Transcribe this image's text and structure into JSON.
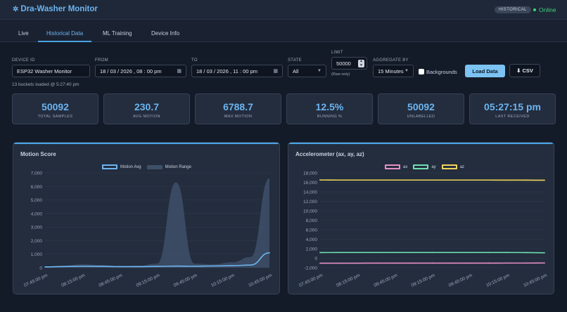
{
  "app": {
    "title": "Dra-Washer Monitor",
    "mode_badge": "HISTORICAL",
    "status": "Online",
    "status_color": "#3fd079"
  },
  "tabs": [
    {
      "label": "Live",
      "active": false
    },
    {
      "label": "Historical Data",
      "active": true
    },
    {
      "label": "ML Training",
      "active": false
    },
    {
      "label": "Device Info",
      "active": false
    }
  ],
  "filters": {
    "device_id": {
      "label": "DEVICE ID",
      "value": "ESP32 Washer Monitor"
    },
    "from": {
      "label": "FROM",
      "value": "18 / 03 / 2026 , 08 : 00 pm"
    },
    "to": {
      "label": "TO",
      "value": "18 / 03 / 2026 , 11 : 00 pm"
    },
    "state": {
      "label": "STATE",
      "value": "All"
    },
    "limit": {
      "label": "LIMIT",
      "value": "50000",
      "hint": "(Raw only)"
    },
    "aggregate": {
      "label": "AGGREGATE BY",
      "value": "15 Minutes"
    },
    "backgrounds_label": "Backgrounds",
    "load_button": "Load Data",
    "csv_button": "CSV"
  },
  "buckets_status": "13 buckets loaded @ 5:27:40 pm",
  "stats": [
    {
      "value": "50092",
      "label": "TOTAL SAMPLES"
    },
    {
      "value": "230.7",
      "label": "AVG MOTION"
    },
    {
      "value": "6788.7",
      "label": "MAX MOTION"
    },
    {
      "value": "12.5%",
      "label": "RUNNING %"
    },
    {
      "value": "50092",
      "label": "UNLABELLED"
    },
    {
      "value": "05:27:15 pm",
      "label": "LAST RECEIVED"
    }
  ],
  "colors": {
    "accent": "#6cb4f0",
    "ax": "#e88fc6",
    "ay": "#6fe0b0",
    "az": "#f2d35c",
    "range_fill": "#3e5068"
  },
  "chart_data": [
    {
      "type": "area",
      "title": "Motion Score",
      "x": [
        "07:45:00 pm",
        "08:00:00 pm",
        "08:15:00 pm",
        "08:30:00 pm",
        "08:45:00 pm",
        "09:00:00 pm",
        "09:15:00 pm",
        "09:30:00 pm",
        "09:45:00 pm",
        "10:00:00 pm",
        "10:15:00 pm",
        "10:30:00 pm",
        "10:45:00 pm"
      ],
      "x_tick_labels": [
        "07:45:00 pm",
        "08:15:00 pm",
        "08:45:00 pm",
        "09:15:00 pm",
        "09:45:00 pm",
        "10:15:00 pm",
        "10:45:00 pm"
      ],
      "ylim": [
        0,
        7000
      ],
      "y_ticks": [
        "0",
        "1,000",
        "2,000",
        "3,000",
        "4,000",
        "5,000",
        "6,000",
        "7,000"
      ],
      "series": [
        {
          "name": "Motion Avg",
          "values": [
            60,
            90,
            110,
            100,
            80,
            80,
            100,
            120,
            110,
            130,
            150,
            200,
            1100
          ]
        },
        {
          "name": "Motion Range",
          "values": [
            90,
            150,
            250,
            200,
            120,
            150,
            300,
            6300,
            300,
            250,
            400,
            800,
            6600
          ]
        }
      ],
      "legend": "top-center"
    },
    {
      "type": "line",
      "title": "Accelerometer (ax, ay, az)",
      "x": [
        "07:45:00 pm",
        "08:00:00 pm",
        "08:15:00 pm",
        "08:30:00 pm",
        "08:45:00 pm",
        "09:00:00 pm",
        "09:15:00 pm",
        "09:30:00 pm",
        "09:45:00 pm",
        "10:00:00 pm",
        "10:15:00 pm",
        "10:30:00 pm",
        "10:45:00 pm"
      ],
      "x_tick_labels": [
        "07:45:00 pm",
        "08:15:00 pm",
        "08:45:00 pm",
        "09:15:00 pm",
        "09:45:00 pm",
        "10:15:00 pm",
        "10:45:00 pm"
      ],
      "ylim": [
        -2000,
        18000
      ],
      "y_ticks": [
        "-2,000",
        "0",
        "2,000",
        "4,000",
        "6,000",
        "8,000",
        "10,000",
        "12,000",
        "14,000",
        "16,000",
        "18,000"
      ],
      "series": [
        {
          "name": "ax",
          "values": [
            -1050,
            -1040,
            -1040,
            -1030,
            -1030,
            -1030,
            -1030,
            -1030,
            -1030,
            -1030,
            -1020,
            -1020,
            -1000
          ]
        },
        {
          "name": "ay",
          "values": [
            1200,
            1210,
            1210,
            1210,
            1210,
            1210,
            1210,
            1210,
            1210,
            1210,
            1210,
            1200,
            1150
          ]
        },
        {
          "name": "az",
          "values": [
            16500,
            16480,
            16480,
            16480,
            16480,
            16480,
            16480,
            16480,
            16480,
            16480,
            16470,
            16470,
            16450
          ]
        }
      ],
      "legend": "top-center"
    }
  ]
}
